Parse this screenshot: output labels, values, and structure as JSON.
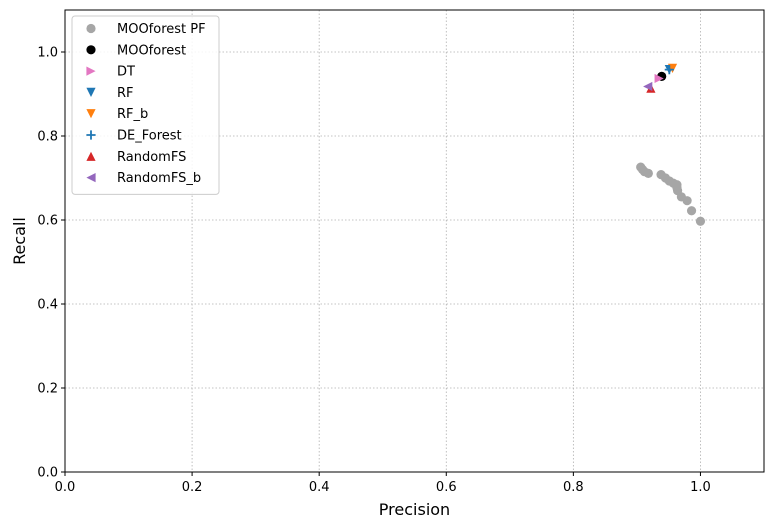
{
  "chart_data": {
    "type": "scatter",
    "xlabel": "Precision",
    "ylabel": "Recall",
    "xlim": [
      0.0,
      1.1
    ],
    "ylim": [
      0.0,
      1.1
    ],
    "xticks": [
      "0.0",
      "0.2",
      "0.4",
      "0.6",
      "0.8",
      "1.0"
    ],
    "yticks": [
      "0.0",
      "0.2",
      "0.4",
      "0.6",
      "0.8",
      "1.0"
    ],
    "grid": true,
    "legend_position": "top-left",
    "series": [
      {
        "name": "MOOforest PF",
        "marker": "circle",
        "color": "#a6a6a6",
        "points": [
          [
            0.906,
            0.726
          ],
          [
            0.909,
            0.72
          ],
          [
            0.912,
            0.715
          ],
          [
            0.918,
            0.711
          ],
          [
            0.938,
            0.708
          ],
          [
            0.945,
            0.7
          ],
          [
            0.951,
            0.693
          ],
          [
            0.957,
            0.688
          ],
          [
            0.963,
            0.684
          ],
          [
            0.963,
            0.677
          ],
          [
            0.964,
            0.67
          ],
          [
            0.97,
            0.655
          ],
          [
            0.979,
            0.646
          ],
          [
            0.986,
            0.622
          ],
          [
            1.0,
            0.597
          ]
        ]
      },
      {
        "name": "MOOforest",
        "marker": "circle",
        "color": "#000000",
        "points": [
          [
            0.939,
            0.942
          ]
        ]
      },
      {
        "name": "DT",
        "marker": "triangle-right",
        "color": "#e377c2",
        "points": [
          [
            0.935,
            0.937
          ]
        ]
      },
      {
        "name": "RF",
        "marker": "triangle-down",
        "color": "#1f77b4",
        "points": [
          [
            0.951,
            0.958
          ]
        ]
      },
      {
        "name": "RF_b",
        "marker": "triangle-down",
        "color": "#ff7f0e",
        "points": [
          [
            0.956,
            0.961
          ]
        ]
      },
      {
        "name": "DE_Forest",
        "marker": "plus",
        "color": "#1f77b4",
        "points": [
          [
            0.951,
            0.958
          ]
        ]
      },
      {
        "name": "RandomFS",
        "marker": "triangle-up",
        "color": "#d62728",
        "points": [
          [
            0.922,
            0.914
          ]
        ]
      },
      {
        "name": "RandomFS_b",
        "marker": "triangle-left",
        "color": "#9467bd",
        "points": [
          [
            0.917,
            0.918
          ]
        ]
      }
    ]
  }
}
